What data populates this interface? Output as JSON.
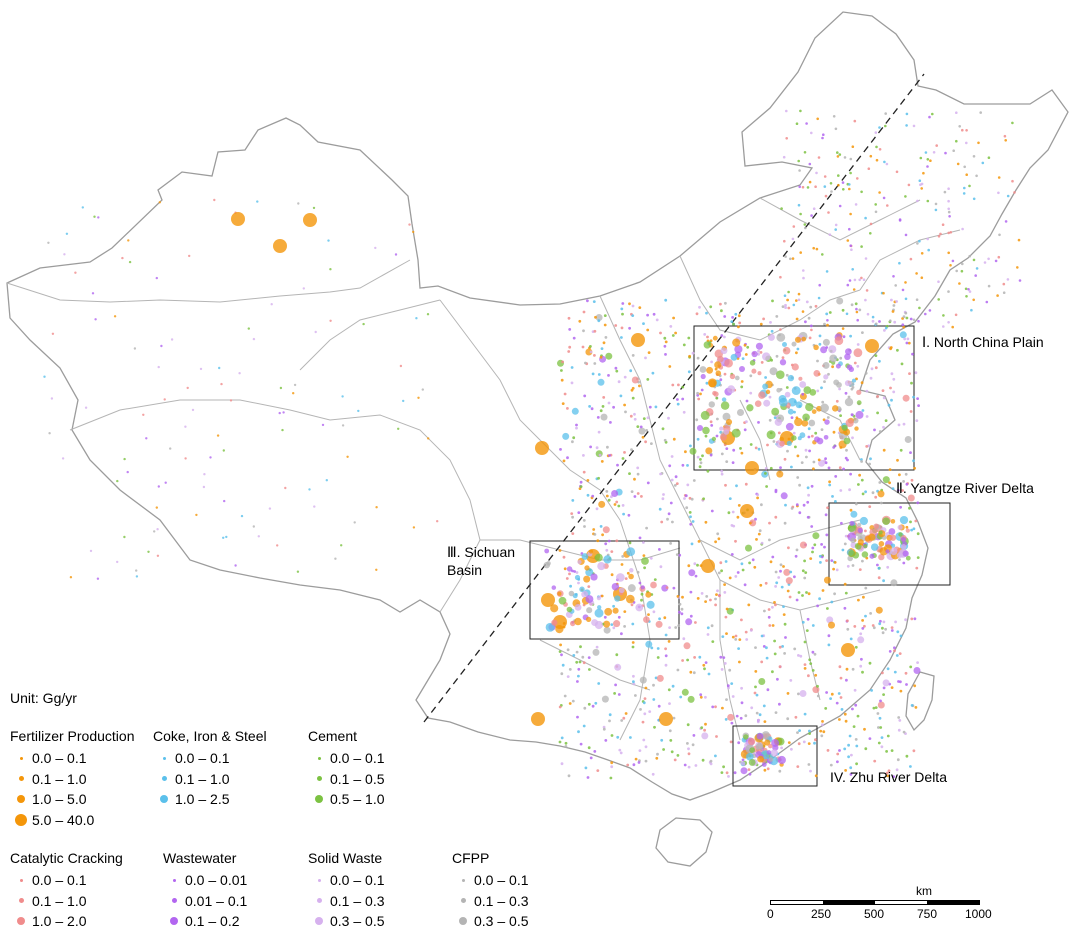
{
  "unit": "Unit: Gg/yr",
  "regions": [
    {
      "id": "I",
      "label": "Ⅰ. North China Plain"
    },
    {
      "id": "II",
      "label": "Ⅱ. Yangtze River Delta"
    },
    {
      "id": "III",
      "label_line1": "Ⅲ. Sichuan",
      "label_line2": "Basin"
    },
    {
      "id": "IV",
      "label": "IV. Zhu River Delta"
    }
  ],
  "legend": [
    {
      "title": "Fertilizer Production",
      "color": "#F4960A",
      "classes": [
        "0.0 – 0.1",
        "0.1 – 1.0",
        "1.0 – 5.0",
        "5.0 – 40.0"
      ]
    },
    {
      "title": "Coke, Iron & Steel",
      "color": "#5BC0EB",
      "classes": [
        "0.0 – 0.1",
        "0.1 – 1.0",
        "1.0 – 2.5"
      ]
    },
    {
      "title": "Cement",
      "color": "#7CC242",
      "classes": [
        "0.0 – 0.1",
        "0.1 – 0.5",
        "0.5 – 1.0"
      ]
    },
    {
      "title": "Catalytic Cracking",
      "color": "#F08C8C",
      "classes": [
        "0.0 – 0.1",
        "0.1 – 1.0",
        "1.0 – 2.0"
      ]
    },
    {
      "title": "Wastewater",
      "color": "#B266F0",
      "classes": [
        "0.0 – 0.01",
        "0.01 – 0.1",
        "0.1 – 0.2"
      ]
    },
    {
      "title": "Solid Waste",
      "color": "#D6B1EE",
      "classes": [
        "0.0 – 0.1",
        "0.1 – 0.3",
        "0.3 – 0.5"
      ]
    },
    {
      "title": "CFPP",
      "color": "#B4B4B4",
      "classes": [
        "0.0 – 0.1",
        "0.1 – 0.3",
        "0.3 – 0.5"
      ]
    }
  ],
  "scalebar": {
    "unit": "km",
    "ticks": [
      "0",
      "250",
      "500",
      "750",
      "1000"
    ]
  }
}
